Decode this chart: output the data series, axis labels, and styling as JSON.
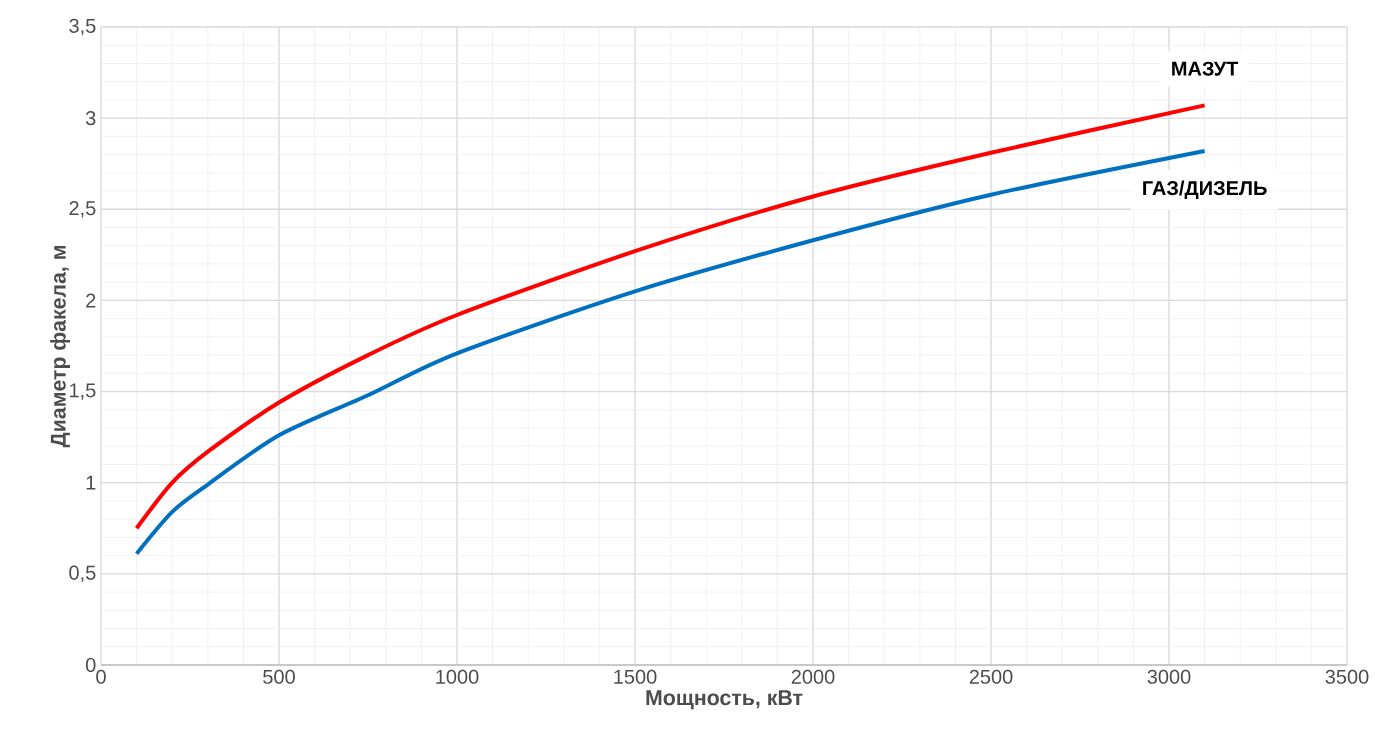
{
  "chart_data": {
    "type": "line",
    "xlabel": "Мощность, кВт",
    "ylabel": "Диаметр факела, м",
    "x": [
      100,
      200,
      300,
      500,
      750,
      1000,
      1500,
      2000,
      2500,
      3100
    ],
    "series": [
      {
        "name": "МАЗУТ",
        "color": "#ff0000",
        "values": [
          0.75,
          1.0,
          1.17,
          1.44,
          1.7,
          1.92,
          2.27,
          2.57,
          2.81,
          3.07
        ]
      },
      {
        "name": "ГАЗ/ДИЗЕЛЬ",
        "color": "#0070c0",
        "values": [
          0.61,
          0.84,
          0.99,
          1.26,
          1.48,
          1.71,
          2.05,
          2.33,
          2.58,
          2.82
        ]
      }
    ],
    "xlim": [
      0,
      3500
    ],
    "xticks": [
      0,
      500,
      1000,
      1500,
      2000,
      2500,
      3000,
      3500
    ],
    "ylim": [
      0,
      3.5
    ],
    "yticks": [
      0,
      {
        "value": 0.5,
        "label": "0,5"
      },
      1,
      {
        "value": 1.5,
        "label": "1,5"
      },
      2,
      {
        "value": 2.5,
        "label": "2,5"
      },
      3,
      {
        "value": 3.5,
        "label": "3,5"
      }
    ],
    "grid": true,
    "legend": false,
    "marker": "none",
    "line_style": "solid"
  }
}
